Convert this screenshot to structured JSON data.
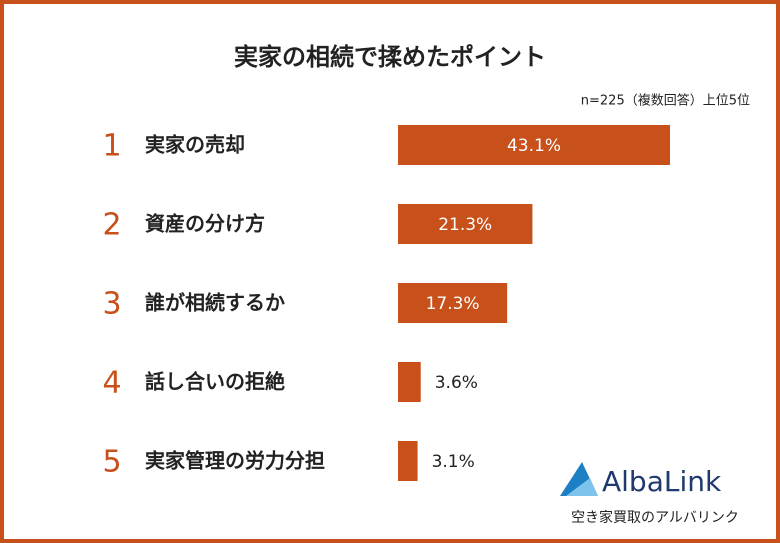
{
  "chart_data": {
    "type": "hbar",
    "title": "実家の相続で揉めたポイント",
    "note": "n=225（複数回答）上位5位",
    "ranks": [
      "1",
      "2",
      "3",
      "4",
      "5"
    ],
    "categories": [
      "実家の売却",
      "資産の分け方",
      "誰が相続するか",
      "話し合いの拒絶",
      "実家管理の労力分担"
    ],
    "values": [
      43.1,
      21.3,
      17.3,
      3.6,
      3.1
    ],
    "value_labels": [
      "43.1%",
      "21.3%",
      "17.3%",
      "3.6%",
      "3.1%"
    ],
    "color": "#c8501a"
  },
  "branding": {
    "name": "AlbaLink",
    "tagline": "空き家買取のアルバリンク"
  }
}
